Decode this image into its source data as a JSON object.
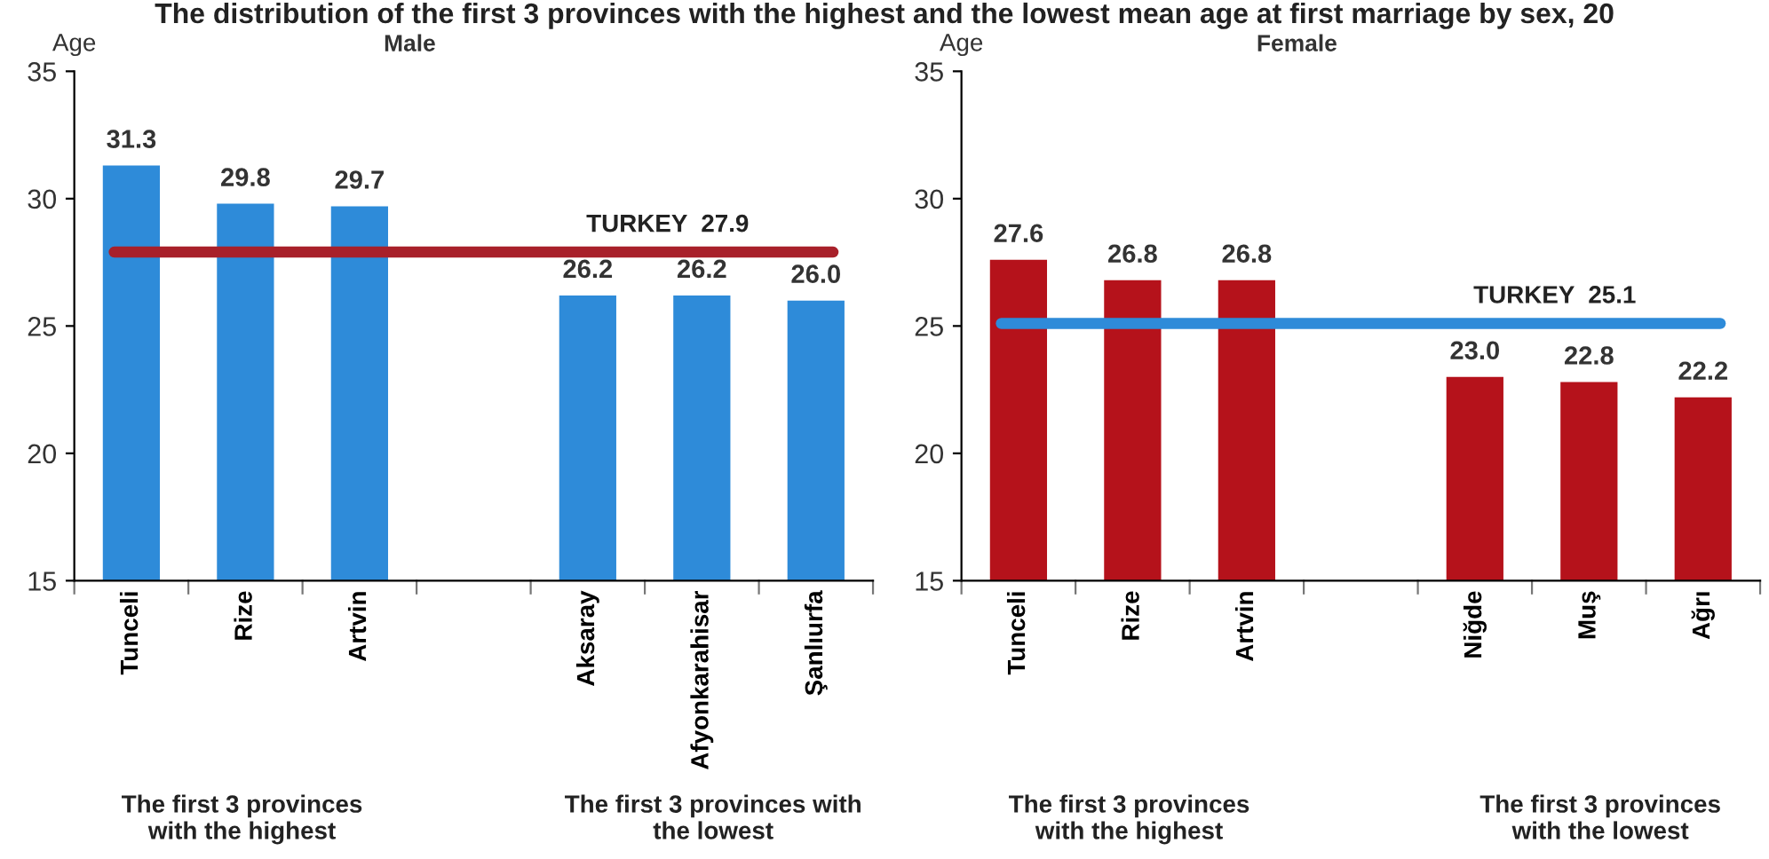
{
  "chart_data": [
    {
      "type": "bar",
      "title": "The distribution of the first 3 provinces with the highest and the lowest mean age at first marriage by sex, 20",
      "subtitle": "Male",
      "ylabel": "Age",
      "categories": [
        "Tunceli",
        "Rize",
        "Artvin",
        null,
        "Aksaray",
        "Afyonkarahisar",
        "Şanlıurfa"
      ],
      "series": [
        {
          "color": "#2e8bd9",
          "values": [
            31.3,
            29.8,
            29.7,
            null,
            26.2,
            26.2,
            26.0
          ],
          "value_labels": [
            "31.3",
            "29.8",
            "29.7",
            null,
            "26.2",
            "26.2",
            "26.0"
          ]
        }
      ],
      "ylim": [
        15,
        35
      ],
      "yticks": [
        15,
        20,
        25,
        30,
        35
      ],
      "grid": false,
      "legend": false,
      "ref_lines": [
        {
          "axis": "y",
          "value": 27.9,
          "label": "TURKEY  27.9",
          "color": "#a8202a"
        }
      ],
      "annotations": [
        "The first 3 provinces\nwith the highest",
        "The first 3 provinces with\nthe lowest"
      ]
    },
    {
      "type": "bar",
      "subtitle": "Female",
      "ylabel": "Age",
      "categories": [
        "Tunceli",
        "Rize",
        "Artvin",
        null,
        "Niğde",
        "Muş",
        "Ağrı"
      ],
      "series": [
        {
          "color": "#b5121b",
          "values": [
            27.6,
            26.8,
            26.8,
            null,
            23.0,
            22.8,
            22.2
          ],
          "value_labels": [
            "27.6",
            "26.8",
            "26.8",
            null,
            "23.0",
            "22.8",
            "22.2"
          ]
        }
      ],
      "ylim": [
        15,
        35
      ],
      "yticks": [
        15,
        20,
        25,
        30,
        35
      ],
      "grid": false,
      "legend": false,
      "ref_lines": [
        {
          "axis": "y",
          "value": 25.1,
          "label": "TURKEY  25.1",
          "color": "#2e8bd9"
        }
      ],
      "annotations": [
        "The first 3 provinces\nwith the highest",
        "The first 3 provinces\nwith the lowest"
      ]
    }
  ]
}
